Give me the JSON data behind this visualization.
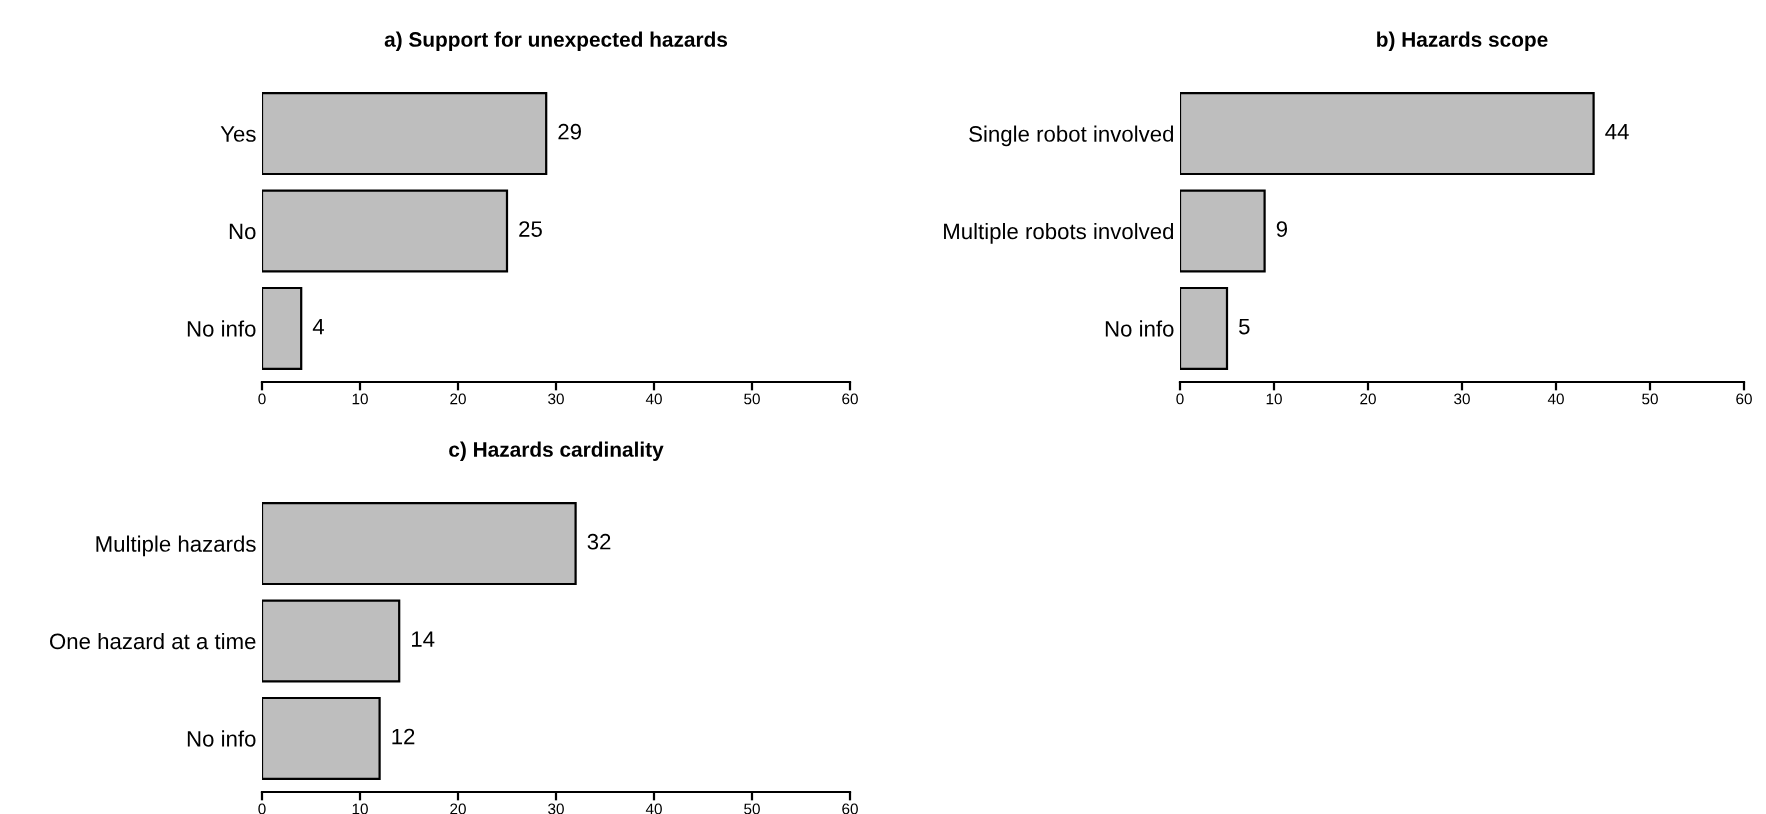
{
  "chart_data": [
    {
      "type": "bar",
      "orientation": "horizontal",
      "title": "a) Support for unexpected hazards",
      "categories": [
        "Yes",
        "No",
        "No info"
      ],
      "values": [
        29,
        25,
        4
      ],
      "color": "#bebebe",
      "xlim": [
        0,
        60
      ],
      "xticks": [
        0,
        10,
        20,
        30,
        40,
        50,
        60
      ],
      "data_labels": true
    },
    {
      "type": "bar",
      "orientation": "horizontal",
      "title": "b) Hazards scope",
      "categories": [
        "Single robot involved",
        "Multiple robots involved",
        "No info"
      ],
      "values": [
        44,
        9,
        5
      ],
      "color": "#bebebe",
      "xlim": [
        0,
        60
      ],
      "xticks": [
        0,
        10,
        20,
        30,
        40,
        50,
        60
      ],
      "data_labels": true
    },
    {
      "type": "bar",
      "orientation": "horizontal",
      "title": "c) Hazards cardinality",
      "categories": [
        "Multiple hazards",
        "One hazard at a time",
        "No info"
      ],
      "values": [
        32,
        14,
        12
      ],
      "color": "#bebebe",
      "xlim": [
        0,
        60
      ],
      "xticks": [
        0,
        10,
        20,
        30,
        40,
        50,
        60
      ],
      "data_labels": true
    }
  ]
}
